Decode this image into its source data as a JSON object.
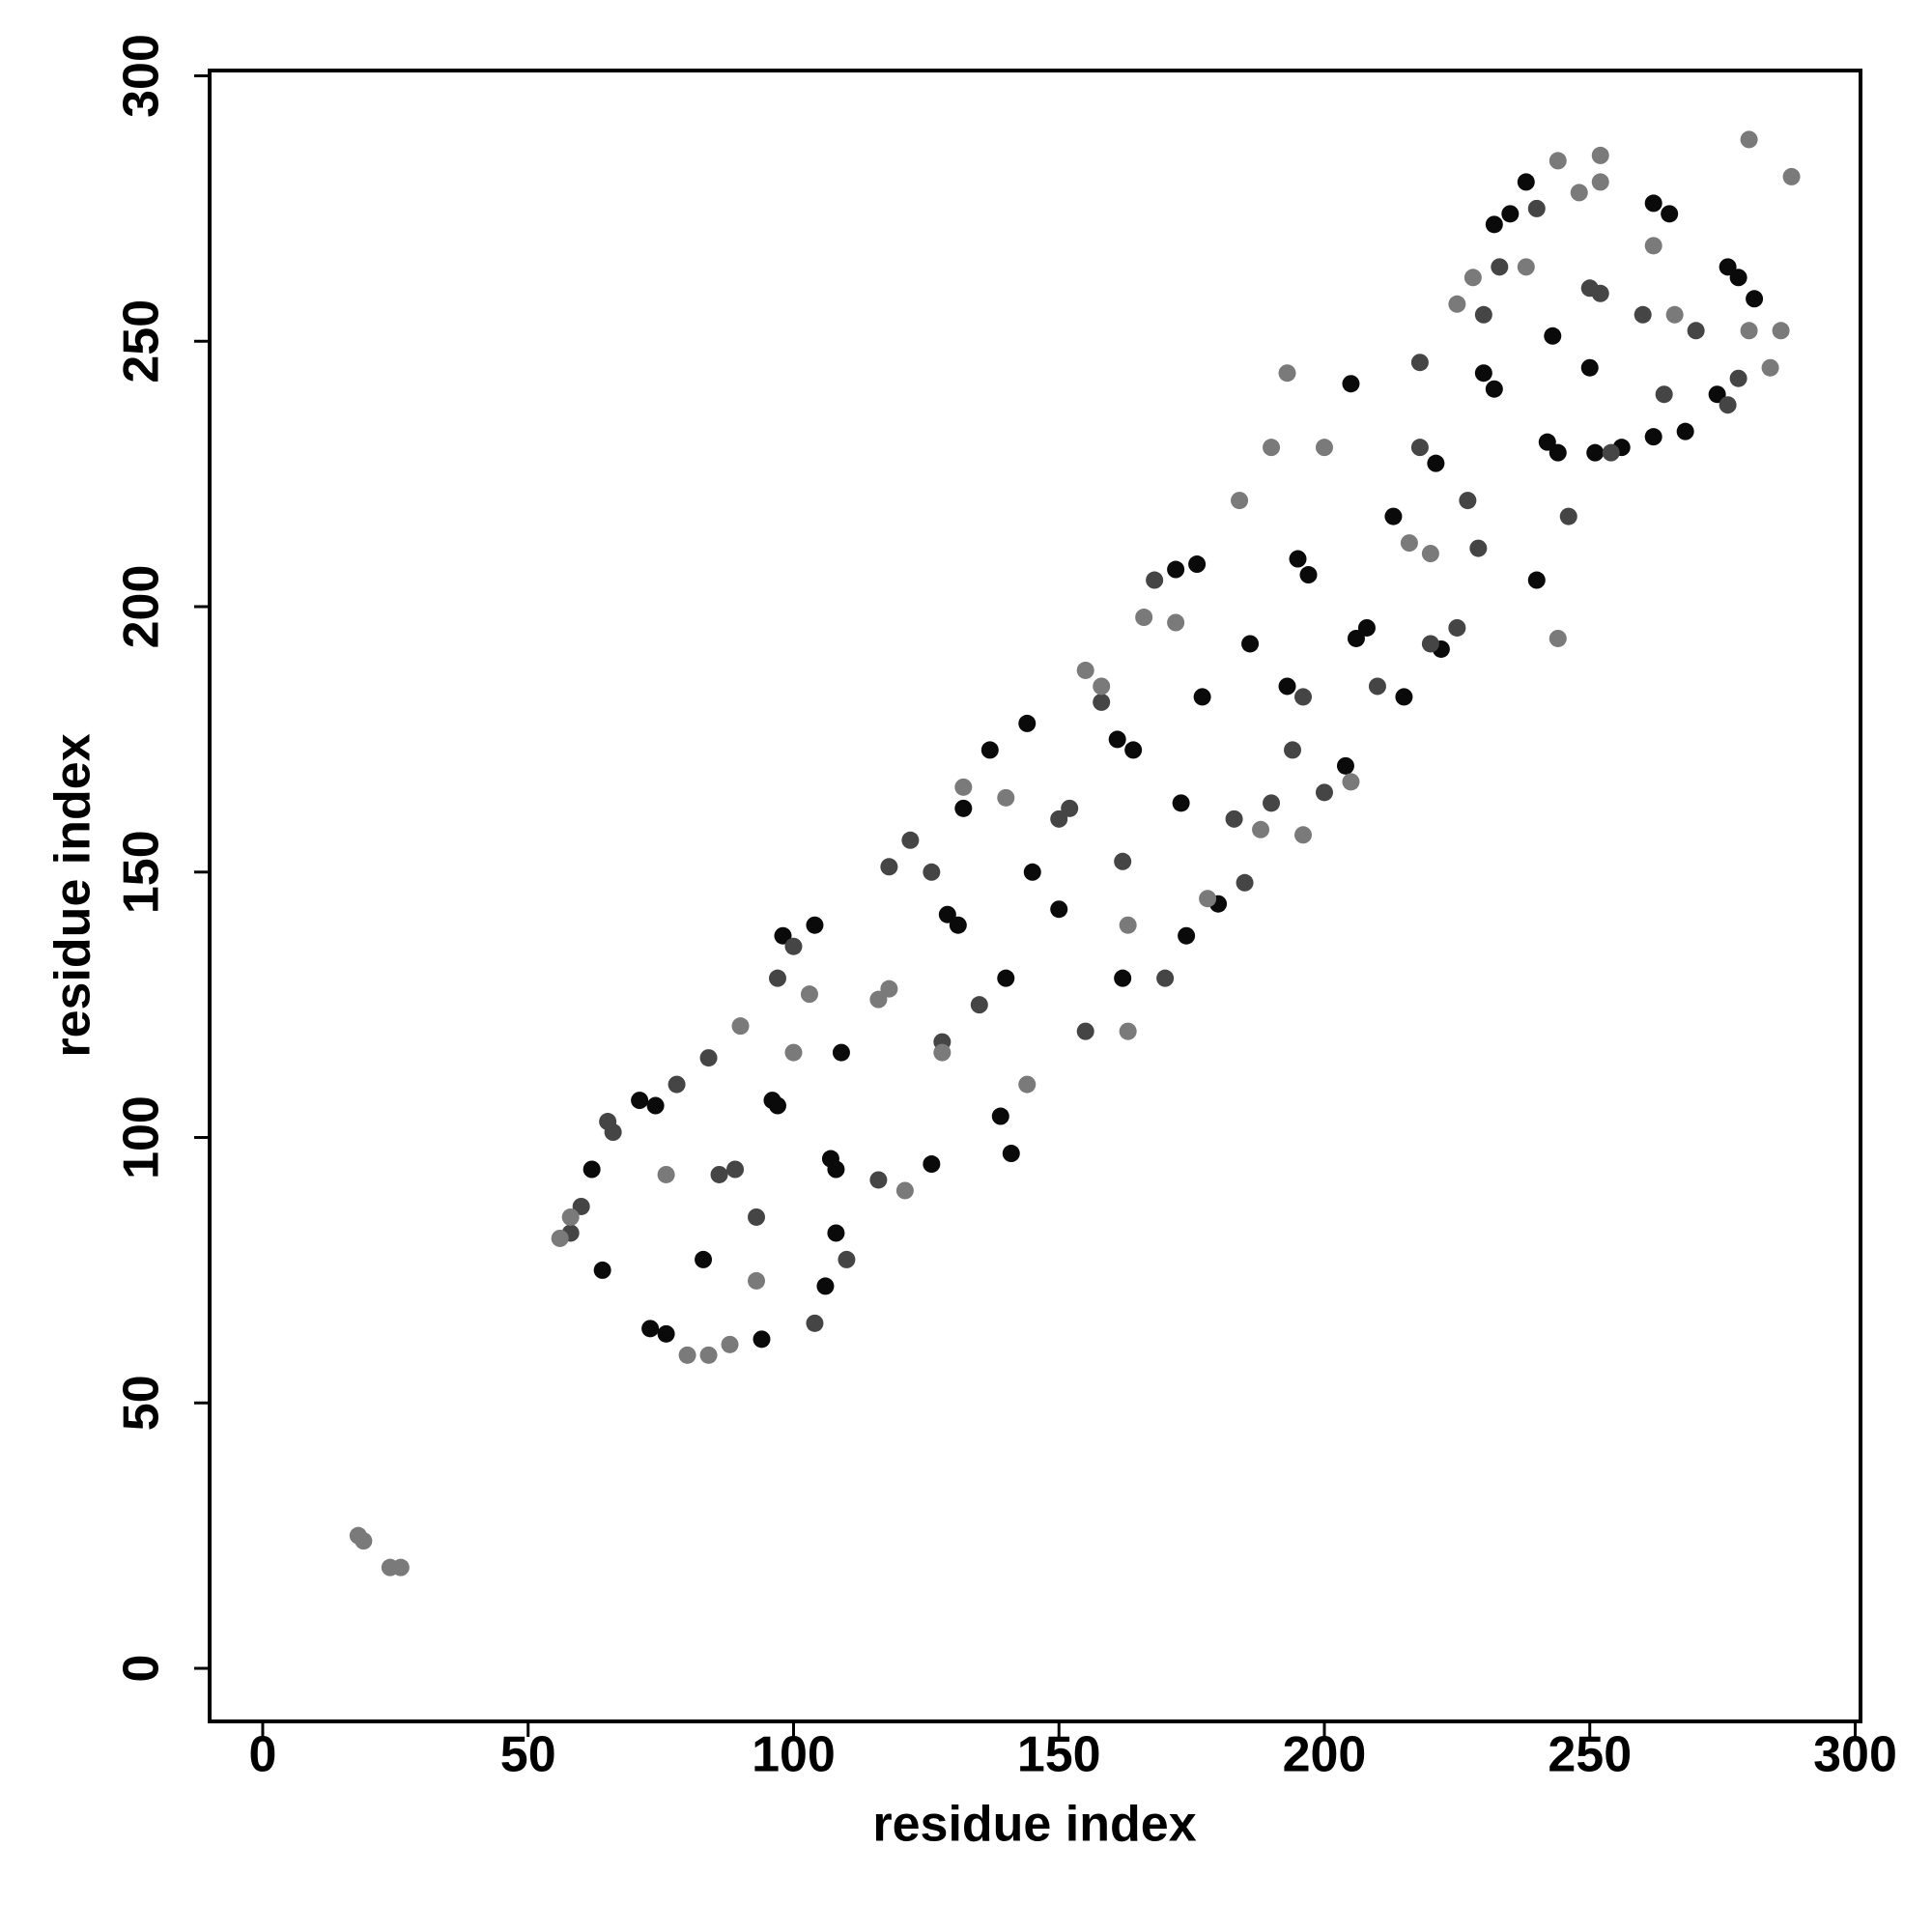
{
  "chart_data": {
    "type": "scatter",
    "x_label": "residue index",
    "y_label": "residue index",
    "xlim": [
      -10,
      301
    ],
    "ylim": [
      -10,
      301
    ],
    "xticks": [
      0,
      50,
      100,
      150,
      200,
      250,
      300
    ],
    "yticks": [
      0,
      50,
      100,
      150,
      200,
      250,
      300
    ],
    "series": [
      {
        "color": "#0a0a0a",
        "x": [
          62,
          64,
          73,
          76,
          71,
          74,
          83,
          94,
          96,
          97,
          98,
          104,
          107,
          108,
          109,
          106,
          108,
          126,
          129,
          131,
          132,
          140,
          139,
          141,
          137,
          144,
          145,
          150,
          161,
          164,
          162,
          173,
          174,
          172,
          176,
          177,
          180,
          186,
          193,
          195,
          197,
          204,
          206,
          205,
          208,
          213,
          215,
          221,
          222,
          230,
          232,
          232,
          235,
          240,
          242,
          244,
          243,
          250,
          251,
          256,
          262,
          265,
          262,
          268,
          274,
          276,
          278,
          281,
          238
        ],
        "values": [
          94,
          75,
          64,
          63,
          107,
          106,
          77,
          62,
          107,
          106,
          138,
          140,
          96,
          94,
          116,
          72,
          82,
          95,
          142,
          140,
          162,
          130,
          104,
          97,
          173,
          178,
          150,
          143,
          175,
          173,
          130,
          163,
          138,
          207,
          208,
          183,
          144,
          193,
          185,
          209,
          206,
          170,
          194,
          242,
          196,
          217,
          183,
          227,
          192,
          244,
          241,
          272,
          274,
          205,
          231,
          229,
          251,
          245,
          229,
          230,
          276,
          274,
          232,
          233,
          240,
          264,
          262,
          258,
          280
        ]
      },
      {
        "color": "#454545",
        "x": [
          58,
          60,
          65,
          66,
          78,
          84,
          86,
          89,
          93,
          97,
          100,
          104,
          110,
          116,
          118,
          122,
          126,
          128,
          135,
          150,
          152,
          155,
          158,
          162,
          168,
          170,
          183,
          185,
          190,
          194,
          196,
          200,
          210,
          218,
          220,
          225,
          227,
          229,
          230,
          233,
          240,
          246,
          250,
          252,
          254,
          260,
          264,
          270,
          276,
          278,
          218
        ],
        "values": [
          82,
          87,
          103,
          101,
          110,
          115,
          93,
          94,
          85,
          130,
          136,
          65,
          77,
          92,
          151,
          156,
          150,
          118,
          125,
          160,
          162,
          120,
          182,
          152,
          205,
          130,
          160,
          148,
          163,
          173,
          183,
          165,
          185,
          230,
          193,
          196,
          220,
          211,
          255,
          264,
          275,
          217,
          260,
          259,
          229,
          255,
          240,
          252,
          238,
          243,
          246
        ]
      },
      {
        "color": "#7a7a7a",
        "x": [
          18,
          19,
          24,
          26,
          56,
          58,
          76,
          80,
          84,
          88,
          90,
          93,
          100,
          103,
          116,
          118,
          121,
          128,
          132,
          140,
          144,
          155,
          158,
          163,
          163,
          166,
          172,
          178,
          184,
          188,
          190,
          196,
          193,
          200,
          205,
          216,
          220,
          225,
          228,
          238,
          244,
          248,
          252,
          252,
          262,
          266,
          280,
          284,
          286,
          288,
          280,
          244
        ],
        "values": [
          25,
          24,
          19,
          19,
          81,
          85,
          93,
          59,
          59,
          61,
          121,
          73,
          116,
          127,
          126,
          128,
          90,
          116,
          166,
          164,
          110,
          188,
          185,
          120,
          140,
          198,
          197,
          145,
          220,
          158,
          230,
          157,
          244,
          230,
          167,
          212,
          210,
          257,
          262,
          264,
          284,
          278,
          285,
          280,
          268,
          255,
          288,
          245,
          252,
          281,
          252,
          194
        ]
      }
    ]
  }
}
